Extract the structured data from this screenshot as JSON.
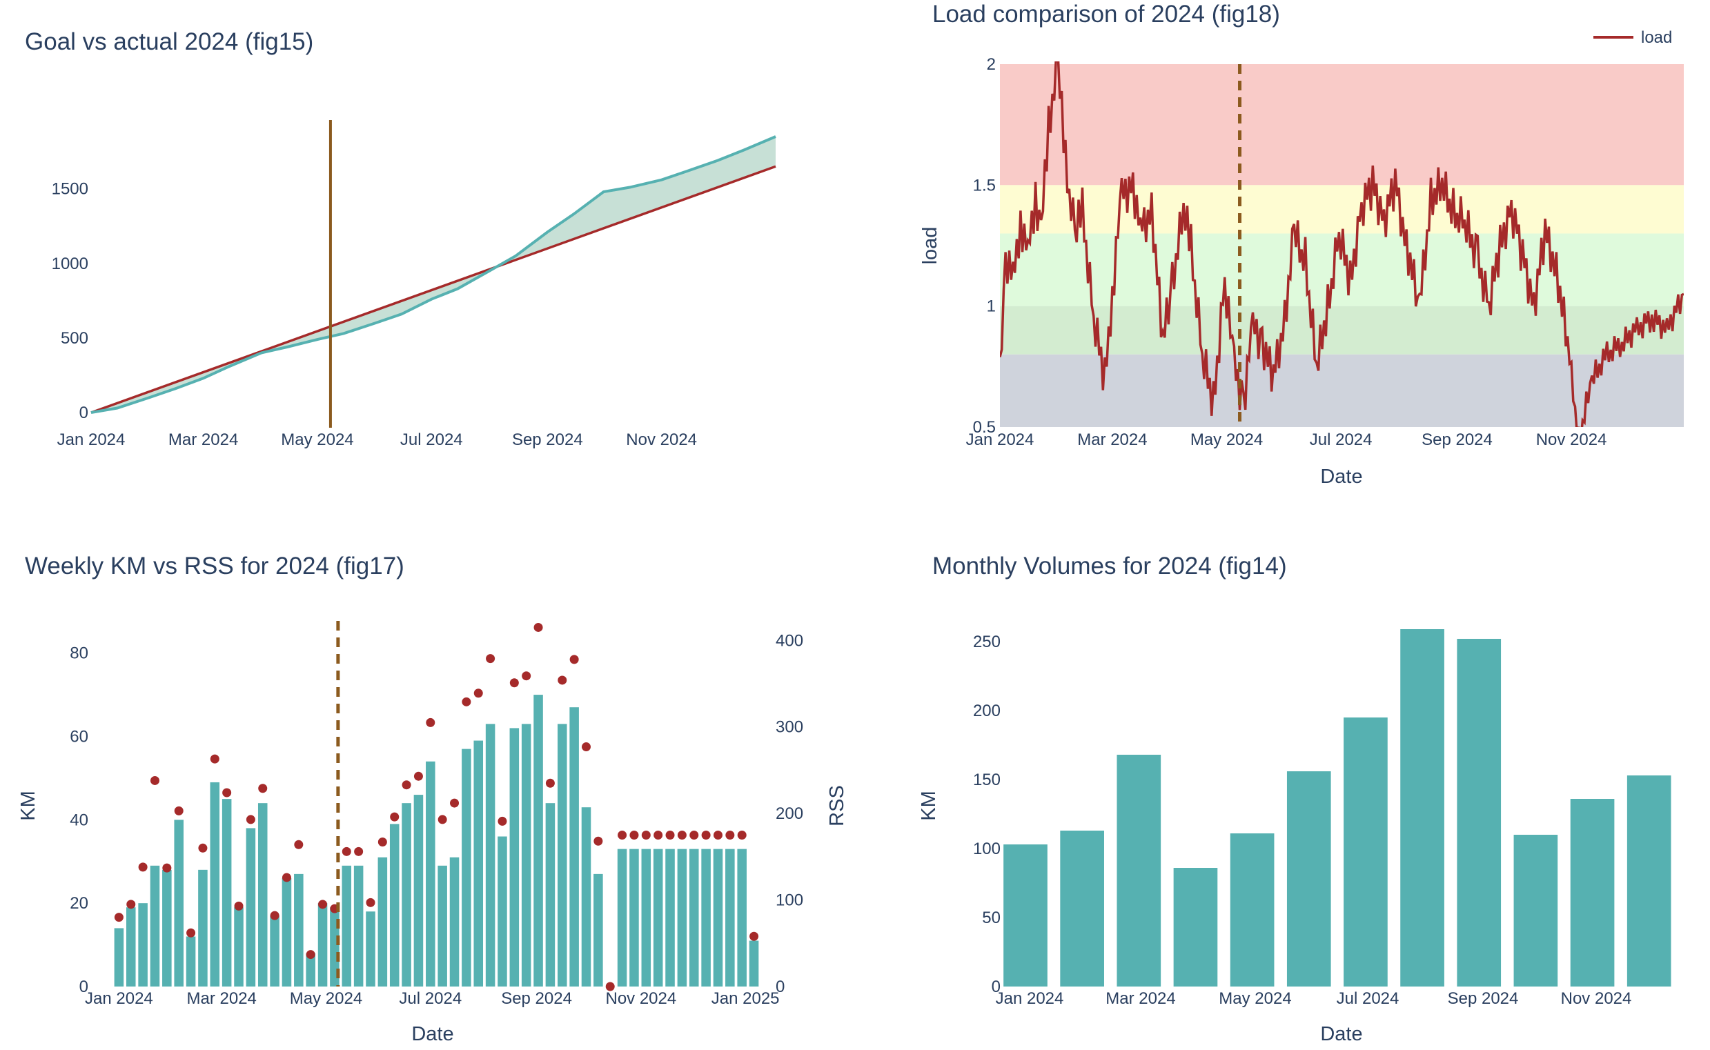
{
  "colors": {
    "teal": "#56b1b1",
    "red": "#a52a2a",
    "fill_between": "#c7e0d6",
    "marker": "#8b5a1e",
    "zone_red": "#f9cbc8",
    "zone_yellow": "#fefcd2",
    "zone_green": "#dffadc",
    "zone_green2": "#d3ecd0",
    "zone_gray": "#cfd3dc",
    "text": "#2a3f5f"
  },
  "chart_data": [
    {
      "id": "fig15",
      "type": "line",
      "title": "Goal vs actual 2024 (fig15)",
      "x_ticks": [
        "Jan 2024",
        "Mar 2024",
        "May 2024",
        "Jul 2024",
        "Sep 2024",
        "Nov 2024"
      ],
      "y_ticks": [
        0,
        500,
        1000,
        1500
      ],
      "xlim": [
        "2024-01-01",
        "2025-01-01"
      ],
      "ylim": [
        -20,
        1950
      ],
      "marker_date": "2024-05-08",
      "series": [
        {
          "type": "goal_line",
          "x": [
            "2024-01-01",
            "2025-01-01"
          ],
          "y": [
            0,
            1650
          ]
        },
        {
          "type": "actual_cumulative",
          "x": [
            "2024-01-01",
            "2024-01-15",
            "2024-02-01",
            "2024-02-15",
            "2024-03-01",
            "2024-03-15",
            "2024-04-01",
            "2024-04-15",
            "2024-05-01",
            "2024-05-15",
            "2024-06-01",
            "2024-06-15",
            "2024-07-01",
            "2024-07-15",
            "2024-08-01",
            "2024-08-15",
            "2024-09-01",
            "2024-09-15",
            "2024-10-01",
            "2024-10-15",
            "2024-11-01",
            "2024-11-15",
            "2024-12-01",
            "2024-12-15",
            "2025-01-01"
          ],
          "y": [
            0,
            30,
            100,
            160,
            230,
            310,
            400,
            440,
            490,
            530,
            600,
            660,
            760,
            830,
            950,
            1050,
            1210,
            1330,
            1480,
            1510,
            1560,
            1620,
            1690,
            1760,
            1850
          ]
        }
      ]
    },
    {
      "id": "fig18",
      "type": "line",
      "title": "Load comparison of 2024 (fig18)",
      "xlabel": "Date",
      "ylabel": "load",
      "legend": "load",
      "legend_position": "top-right",
      "x_ticks": [
        "Jan 2024",
        "Mar 2024",
        "May 2024",
        "Jul 2024",
        "Sep 2024",
        "Nov 2024"
      ],
      "y_ticks": [
        "0.5",
        "1",
        "1.5",
        "2"
      ],
      "xlim": [
        "2024-01-01",
        "2024-12-31"
      ],
      "ylim": [
        0.5,
        2
      ],
      "marker_date": "2024-05-08",
      "zones": [
        {
          "from": 1.5,
          "to": 2.0,
          "color": "zone_red"
        },
        {
          "from": 1.3,
          "to": 1.5,
          "color": "zone_yellow"
        },
        {
          "from": 1.0,
          "to": 1.3,
          "color": "zone_green"
        },
        {
          "from": 0.8,
          "to": 1.0,
          "color": "zone_green2"
        },
        {
          "from": 0.5,
          "to": 0.8,
          "color": "zone_gray"
        }
      ],
      "series": [
        {
          "name": "load",
          "x": [
            "2024-01-01",
            "2024-01-04",
            "2024-01-08",
            "2024-01-12",
            "2024-01-16",
            "2024-01-20",
            "2024-01-23",
            "2024-01-27",
            "2024-02-01",
            "2024-02-05",
            "2024-02-10",
            "2024-02-14",
            "2024-02-20",
            "2024-02-26",
            "2024-03-01",
            "2024-03-06",
            "2024-03-12",
            "2024-03-16",
            "2024-03-22",
            "2024-03-28",
            "2024-04-02",
            "2024-04-08",
            "2024-04-12",
            "2024-04-18",
            "2024-04-24",
            "2024-04-30",
            "2024-05-05",
            "2024-05-10",
            "2024-05-15",
            "2024-05-20",
            "2024-05-26",
            "2024-06-01",
            "2024-06-06",
            "2024-06-12",
            "2024-06-18",
            "2024-06-24",
            "2024-06-30",
            "2024-07-06",
            "2024-07-12",
            "2024-07-18",
            "2024-07-24",
            "2024-07-30",
            "2024-08-05",
            "2024-08-12",
            "2024-08-18",
            "2024-08-24",
            "2024-08-30",
            "2024-09-05",
            "2024-09-12",
            "2024-09-18",
            "2024-09-24",
            "2024-09-30",
            "2024-10-06",
            "2024-10-12",
            "2024-10-18",
            "2024-10-24",
            "2024-10-30",
            "2024-11-05",
            "2024-11-12",
            "2024-11-20",
            "2024-11-28",
            "2024-12-06",
            "2024-12-14",
            "2024-12-22",
            "2024-12-31"
          ],
          "y": [
            0.7,
            1.2,
            1.1,
            1.35,
            1.2,
            1.45,
            1.3,
            1.75,
            2.0,
            1.6,
            1.3,
            1.4,
            0.95,
            0.7,
            1.05,
            1.45,
            1.5,
            1.3,
            1.4,
            0.85,
            1.1,
            1.4,
            1.25,
            0.8,
            0.6,
            1.1,
            0.75,
            0.6,
            0.9,
            0.85,
            0.7,
            0.95,
            1.3,
            1.2,
            0.75,
            1.0,
            1.3,
            1.1,
            1.4,
            1.5,
            1.35,
            1.5,
            1.25,
            1.0,
            1.45,
            1.5,
            1.4,
            1.35,
            1.2,
            1.0,
            1.25,
            1.4,
            1.2,
            1.0,
            1.3,
            1.15,
            0.85,
            0.45,
            0.7,
            0.8,
            0.85,
            0.9,
            0.95,
            0.9,
            1.05
          ]
        }
      ]
    },
    {
      "id": "fig17",
      "type": "bar",
      "title": "Weekly KM vs RSS for 2024 (fig17)",
      "xlabel": "Date",
      "ylabel": "KM",
      "y2label": "RSS",
      "x_ticks": [
        "Jan 2024",
        "Mar 2024",
        "May 2024",
        "Jul 2024",
        "Sep 2024",
        "Nov 2024",
        "Jan 2025"
      ],
      "y_ticks": [
        0,
        20,
        40,
        60,
        80
      ],
      "y2_ticks": [
        0,
        100,
        200,
        300,
        400
      ],
      "xlim": [
        "2023-12-27",
        "2025-01-09"
      ],
      "ylim": [
        0,
        96
      ],
      "y2lim": [
        0,
        460
      ],
      "marker_date": "2024-05-08",
      "series": [
        {
          "name": "KM",
          "type": "bar",
          "values": [
            14,
            19,
            20,
            29,
            28,
            40,
            12,
            28,
            49,
            45,
            19,
            38,
            44,
            17,
            26,
            27,
            8,
            20,
            19,
            29,
            29,
            18,
            31,
            39,
            44,
            46,
            54,
            29,
            31,
            57,
            59,
            63,
            36,
            62,
            63,
            70,
            44,
            63,
            67,
            43,
            27,
            0,
            33,
            33,
            33,
            33,
            33,
            33,
            33,
            33,
            33,
            33,
            33,
            11
          ]
        },
        {
          "name": "RSS",
          "type": "scatter",
          "axis": "y2",
          "values": [
            80,
            95,
            138,
            238,
            137,
            203,
            62,
            160,
            263,
            224,
            93,
            193,
            229,
            82,
            126,
            164,
            37,
            95,
            90,
            156,
            156,
            97,
            167,
            196,
            233,
            243,
            305,
            193,
            212,
            329,
            339,
            379,
            191,
            351,
            359,
            415,
            235,
            354,
            378,
            277,
            168,
            0,
            175,
            175,
            175,
            175,
            175,
            175,
            175,
            175,
            175,
            175,
            175,
            58
          ]
        }
      ]
    },
    {
      "id": "fig14",
      "type": "bar",
      "title": "Monthly Volumes for 2024 (fig14)",
      "xlabel": "Date",
      "ylabel": "KM",
      "x_ticks": [
        "Jan 2024",
        "Mar 2024",
        "May 2024",
        "Jul 2024",
        "Sep 2024",
        "Nov 2024"
      ],
      "y_ticks": [
        0,
        50,
        100,
        150,
        200,
        250
      ],
      "ylim": [
        0,
        275
      ],
      "categories": [
        "2024-01",
        "2024-02",
        "2024-03",
        "2024-04",
        "2024-05",
        "2024-06",
        "2024-07",
        "2024-08",
        "2024-09",
        "2024-10",
        "2024-11",
        "2024-12"
      ],
      "values": [
        103,
        113,
        168,
        86,
        111,
        156,
        195,
        259,
        252,
        110,
        136,
        153
      ]
    }
  ]
}
